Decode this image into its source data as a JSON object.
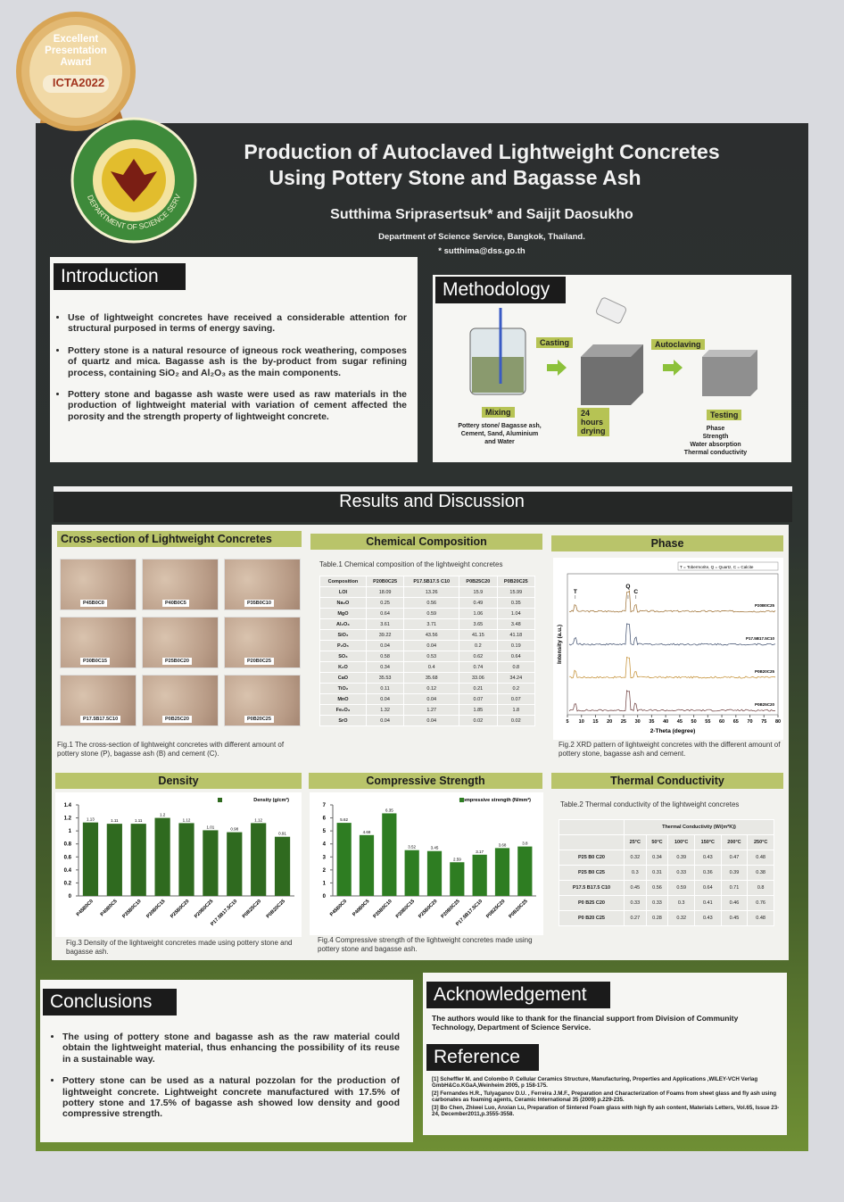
{
  "badge": {
    "lines": [
      "Excellent",
      "Presentation",
      "Award"
    ],
    "event": "ICTA2022"
  },
  "logo": {
    "text": "DEPARTMENT OF SCIENCE SERVICE"
  },
  "header": {
    "title": [
      "Production of Autoclaved Lightweight Concretes",
      "Using Pottery Stone and Bagasse Ash"
    ],
    "authors": "Sutthima Sriprasertsuk* and Saijit Daosukho",
    "affiliation": "Department of Science Service, Bangkok, Thailand.",
    "email": "* sutthima@dss.go.th"
  },
  "introduction": {
    "heading": "Introduction",
    "bullets": [
      "Use of lightweight concretes have received a considerable attention for structural purposed in terms of energy saving.",
      "Pottery stone is a natural resource of igneous rock weathering, composes of quartz and mica. Bagasse ash is the by-product from sugar refining process, containing SiO₂ and Al₂O₃ as the main components.",
      "Pottery stone and bagasse ash waste were used as raw materials in the production of lightweight material with variation of cement affected the porosity and the strength property of lightweight concrete."
    ]
  },
  "methodology": {
    "heading": "Methodology",
    "steps": [
      {
        "label": "Mixing",
        "notes": [
          "Pottery stone/ Bagasse ash,",
          "Cement, Sand, Aluminium",
          "and Water"
        ]
      },
      {
        "label": "Casting"
      },
      {
        "label": "24 hours drying"
      },
      {
        "label": "Autoclaving"
      },
      {
        "label": "Testing",
        "notes": [
          "Phase",
          "Strength",
          "Water absorption",
          "Thermal conductivity"
        ]
      }
    ]
  },
  "results": {
    "heading": "Results and Discussion",
    "cross_section": {
      "heading": "Cross-section of Lightweight Concretes",
      "samples": [
        "P45B0C0",
        "P40B0C5",
        "P35B0C10",
        "P30B0C15",
        "P25B0C20",
        "P20B0C25",
        "P17.5B17.5C10",
        "P0B25C20",
        "P0B20C25"
      ],
      "caption": "Fig.1 The cross-section of lightweight concretes with different amount of pottery stone (P), bagasse ash (B) and cement (C)."
    },
    "chemical": {
      "heading": "Chemical Composition",
      "caption": "Table.1 Chemical composition of the lightweight concretes",
      "columns": [
        "Composition",
        "P20B0C25",
        "P17.5B17.5 C10",
        "P0B25C20",
        "P0B20C25"
      ],
      "rows": [
        [
          "LOI",
          18.09,
          13.26,
          15.9,
          15.99
        ],
        [
          "Na₂O",
          0.25,
          0.56,
          0.49,
          0.35
        ],
        [
          "MgO",
          0.64,
          0.59,
          1.06,
          1.04
        ],
        [
          "Al₂O₃",
          3.61,
          3.71,
          3.65,
          3.48
        ],
        [
          "SiO₂",
          39.22,
          43.56,
          41.15,
          41.18
        ],
        [
          "P₂O₅",
          0.04,
          0.04,
          0.2,
          0.19
        ],
        [
          "SO₃",
          0.58,
          0.53,
          0.62,
          0.64
        ],
        [
          "K₂O",
          0.34,
          0.4,
          0.74,
          0.8
        ],
        [
          "CaO",
          35.53,
          35.68,
          33.06,
          34.24
        ],
        [
          "TiO₂",
          0.11,
          0.12,
          0.21,
          0.2
        ],
        [
          "MnO",
          0.04,
          0.04,
          0.07,
          0.07
        ],
        [
          "Fe₂O₃",
          1.32,
          1.27,
          1.85,
          1.8
        ],
        [
          "SrO",
          0.04,
          0.04,
          0.02,
          0.02
        ]
      ]
    },
    "phase": {
      "heading": "Phase",
      "chart_data": {
        "type": "xrd",
        "legend": "T = Tobermorite, Q = Quartz, C = Calcite",
        "xlabel": "2-Theta (degree)",
        "ylabel": "Intensity (a.u.)",
        "xlim": [
          5,
          80
        ],
        "xticks": [
          5,
          10,
          15,
          20,
          25,
          30,
          35,
          40,
          45,
          50,
          55,
          60,
          65,
          70,
          75,
          80
        ],
        "patterns": [
          "P20B0C25",
          "P17.5B17.5C10",
          "P0B20C25",
          "P0B25C20"
        ],
        "peaks": [
          {
            "label": "T",
            "x": 7.8
          },
          {
            "label": "Q",
            "x": 26.6
          },
          {
            "label": "C",
            "x": 29.4
          }
        ]
      },
      "caption": "Fig.2 XRD pattern of lightweight concretes with the different amount of pottery stone, bagasse ash and cement."
    },
    "density": {
      "heading": "Density",
      "chart_data": {
        "type": "bar",
        "legend": "Density (g/cm³)",
        "categories": [
          "P45B0C0",
          "P40B0C5",
          "P35B0C10",
          "P30B0C15",
          "P25B0C20",
          "P20B0C25",
          "P17.5B17.5C10",
          "P0B25C20",
          "P0B20C25"
        ],
        "values": [
          1.13,
          1.11,
          1.11,
          1.2,
          1.12,
          1.01,
          0.98,
          1.12,
          0.91
        ],
        "color": "#2f6a1f",
        "ylim": [
          0,
          1.4
        ],
        "yticks": [
          0,
          0.2,
          0.4,
          0.6,
          0.8,
          1,
          1.2,
          1.4
        ]
      },
      "caption": "Fig.3 Density of the lightweight concretes made using pottery stone and bagasse ash."
    },
    "strength": {
      "heading": "Compressive Strength",
      "chart_data": {
        "type": "bar",
        "legend": "Compressive strength (N/mm²)",
        "categories": [
          "P45B0C0",
          "P40B0C5",
          "P35B0C10",
          "P30B0C15",
          "P25B0C20",
          "P20B0C25",
          "P17.5B17.5C10",
          "P0B25C20",
          "P0B20C25"
        ],
        "values": [
          5.62,
          4.68,
          6.35,
          3.52,
          3.45,
          2.59,
          3.17,
          3.68,
          3.8
        ],
        "color": "#2e7d22",
        "ylim": [
          0,
          7
        ],
        "yticks": [
          0,
          1,
          2,
          3,
          4,
          5,
          6,
          7
        ]
      },
      "caption": "Fig.4 Compressive strength of the lightweight concretes made using pottery stone and bagasse ash."
    },
    "thermal": {
      "heading": "Thermal Conductivity",
      "caption": "Table.2 Thermal conductivity of the lightweight concretes",
      "group": "Thermal Conductivity (W/(m*K))",
      "columns": [
        "25°C",
        "50°C",
        "100°C",
        "150°C",
        "200°C",
        "250°C"
      ],
      "rows": [
        [
          "P25 B0 C20",
          0.32,
          0.34,
          0.39,
          0.43,
          0.47,
          0.48
        ],
        [
          "P25 B0 C25",
          0.3,
          0.31,
          0.33,
          0.36,
          0.39,
          0.38
        ],
        [
          "P17.5 B17.5 C10",
          0.45,
          0.56,
          0.59,
          0.64,
          0.71,
          0.8
        ],
        [
          "P0 B25 C20",
          0.33,
          0.33,
          0.3,
          0.41,
          0.46,
          0.76
        ],
        [
          "P0 B20 C25",
          0.27,
          0.28,
          0.32,
          0.43,
          0.45,
          0.48
        ]
      ]
    }
  },
  "conclusions": {
    "heading": "Conclusions",
    "bullets": [
      "The using of pottery stone and bagasse ash as the raw material could obtain the lightweight material, thus enhancing the possibility of its reuse in a sustainable way.",
      "Pottery stone can be used as a natural pozzolan for the production of lightweight concrete. Lightweight concrete manufactured with 17.5% of pottery stone and 17.5% of bagasse ash showed low density and good compressive strength."
    ]
  },
  "acknowledgement": {
    "heading": "Acknowledgement",
    "text": "The authors would like to thank for the financial support from Division of Community Technology, Department of Science Service."
  },
  "references": {
    "heading": "Reference",
    "items": [
      "[1] Scheffler M. and Colombo P. Cellular Ceramics Structure, Manufacturing, Properties and Applications ,WILEY-VCH Verlag GmbH&Co.KGaA,Weinheim 2005, p 158-175.",
      "[2] Fernandes H.R., Tulyaganov D.U. , Ferreira J.M.F., Preparation and Characterization of Foams from sheet glass and fly ash using carbonates as foaming agents, Ceramic International 35 (2009) p.229-235.",
      "[3] Bo Chen, Zhiwei Luo, Anxian Lu, Preparation of Sintered Foam glass with high fly ash content, Materials Letters, Vol.65, Issue 23-24, December2011,p.3555-3558."
    ]
  }
}
